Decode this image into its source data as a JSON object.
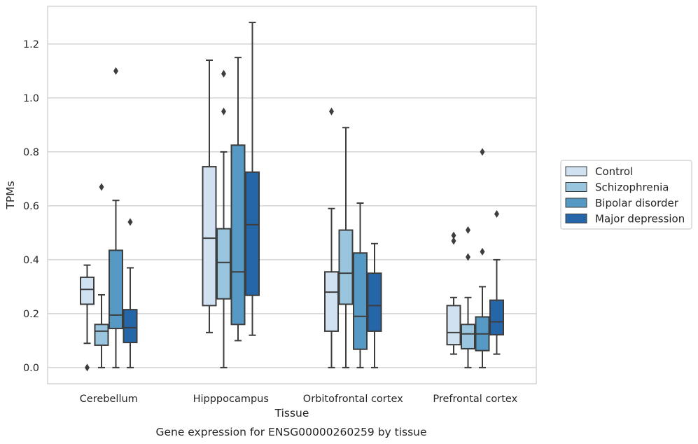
{
  "chart_data": {
    "type": "box",
    "title": "",
    "caption": "Gene expression for ENSG00000260259 by tissue",
    "xlabel": "Tissue",
    "ylabel": "TPMs",
    "ylim": [
      -0.06,
      1.34
    ],
    "yticks": [
      0.0,
      0.2,
      0.4,
      0.6,
      0.8,
      1.0,
      1.2
    ],
    "ytick_labels": [
      "0.0",
      "0.2",
      "0.4",
      "0.6",
      "0.8",
      "1.0",
      "1.2"
    ],
    "grid": "horizontal",
    "legend_position": "right",
    "categories": [
      "Cerebellum",
      "Hipppocampus",
      "Orbitofrontal cortex",
      "Prefrontal cortex"
    ],
    "series": [
      {
        "name": "Control",
        "color": "#d0e1f2",
        "boxes": [
          {
            "whislo": 0.09,
            "q1": 0.235,
            "med": 0.29,
            "q3": 0.335,
            "whishi": 0.38,
            "fliers": [
              0.0
            ]
          },
          {
            "whislo": 0.13,
            "q1": 0.23,
            "med": 0.48,
            "q3": 0.745,
            "whishi": 1.14,
            "fliers": []
          },
          {
            "whislo": 0.0,
            "q1": 0.135,
            "med": 0.28,
            "q3": 0.355,
            "whishi": 0.59,
            "fliers": [
              0.95
            ]
          },
          {
            "whislo": 0.05,
            "q1": 0.085,
            "med": 0.13,
            "q3": 0.23,
            "whishi": 0.26,
            "fliers": [
              0.47,
              0.49
            ]
          }
        ]
      },
      {
        "name": "Schizophrenia",
        "color": "#9ac5de",
        "boxes": [
          {
            "whislo": 0.0,
            "q1": 0.083,
            "med": 0.135,
            "q3": 0.16,
            "whishi": 0.27,
            "fliers": [
              0.67
            ]
          },
          {
            "whislo": 0.0,
            "q1": 0.255,
            "med": 0.39,
            "q3": 0.515,
            "whishi": 0.8,
            "fliers": [
              0.95,
              1.09
            ]
          },
          {
            "whislo": 0.0,
            "q1": 0.235,
            "med": 0.35,
            "q3": 0.51,
            "whishi": 0.89,
            "fliers": []
          },
          {
            "whislo": 0.0,
            "q1": 0.07,
            "med": 0.125,
            "q3": 0.16,
            "whishi": 0.26,
            "fliers": [
              0.41,
              0.51
            ]
          }
        ]
      },
      {
        "name": "Bipolar disorder",
        "color": "#5599c4",
        "boxes": [
          {
            "whislo": 0.0,
            "q1": 0.145,
            "med": 0.195,
            "q3": 0.435,
            "whishi": 0.62,
            "fliers": [
              1.1
            ]
          },
          {
            "whislo": 0.1,
            "q1": 0.16,
            "med": 0.355,
            "q3": 0.825,
            "whishi": 1.15,
            "fliers": []
          },
          {
            "whislo": 0.0,
            "q1": 0.068,
            "med": 0.19,
            "q3": 0.425,
            "whishi": 0.61,
            "fliers": []
          },
          {
            "whislo": 0.0,
            "q1": 0.063,
            "med": 0.125,
            "q3": 0.188,
            "whishi": 0.3,
            "fliers": [
              0.43,
              0.8
            ]
          }
        ]
      },
      {
        "name": "Major depression",
        "color": "#2566a8",
        "boxes": [
          {
            "whislo": 0.0,
            "q1": 0.093,
            "med": 0.148,
            "q3": 0.215,
            "whishi": 0.37,
            "fliers": [
              0.54
            ]
          },
          {
            "whislo": 0.12,
            "q1": 0.268,
            "med": 0.53,
            "q3": 0.725,
            "whishi": 1.28,
            "fliers": []
          },
          {
            "whislo": 0.0,
            "q1": 0.135,
            "med": 0.23,
            "q3": 0.35,
            "whishi": 0.46,
            "fliers": []
          },
          {
            "whislo": 0.05,
            "q1": 0.122,
            "med": 0.17,
            "q3": 0.25,
            "whishi": 0.4,
            "fliers": [
              0.57
            ]
          }
        ]
      }
    ]
  }
}
